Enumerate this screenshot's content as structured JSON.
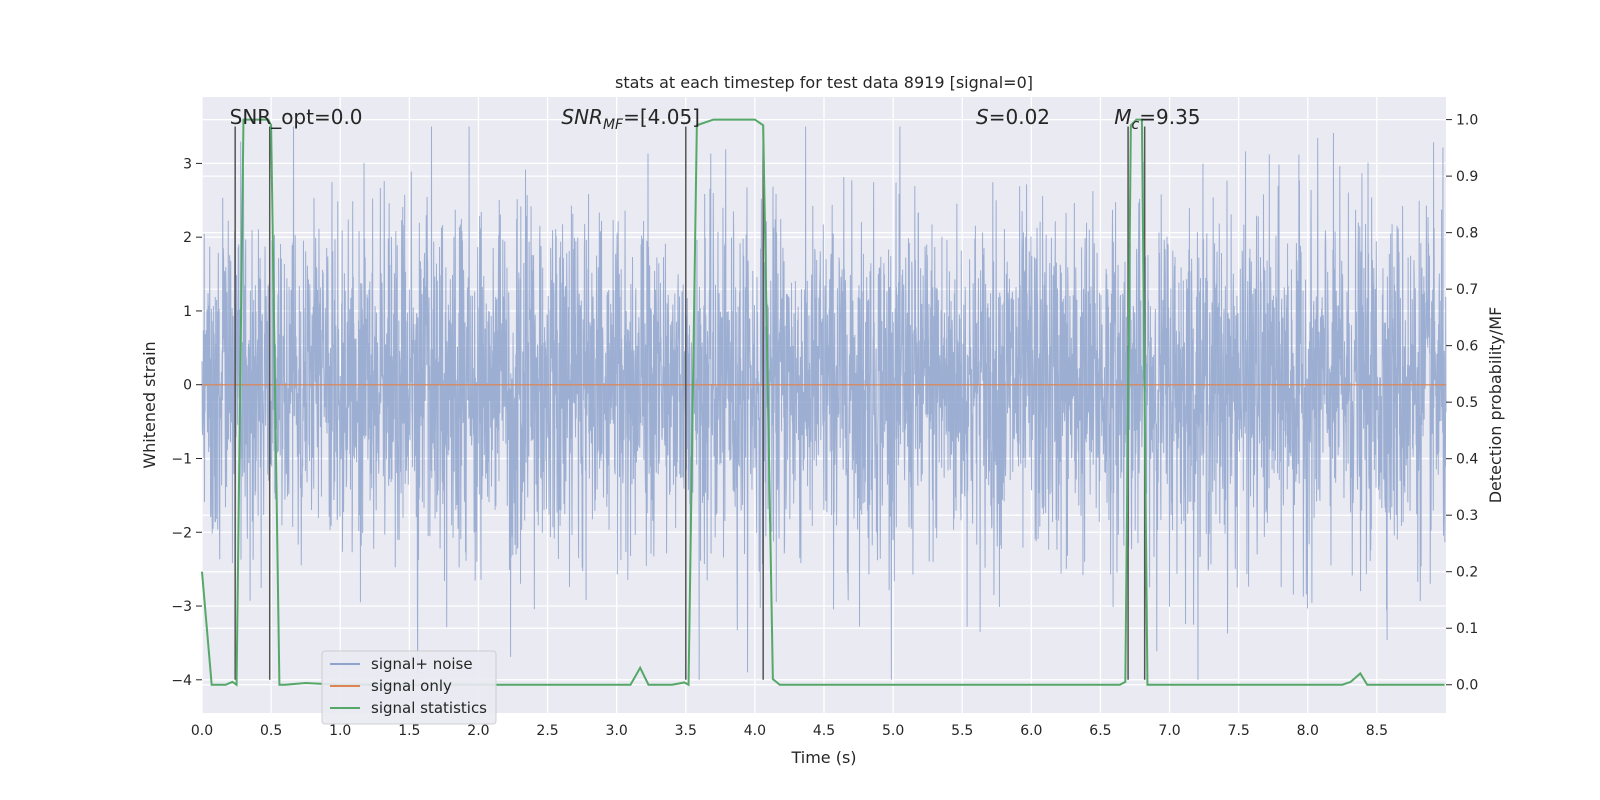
{
  "chart_data": {
    "type": "line",
    "title": "stats at each timestep for test data 8919 [signal=0]",
    "xlabel": "Time (s)",
    "ylabel": "Whitened strain",
    "ylabel_right": "Detection probability/MF",
    "xlim": [
      0.0,
      9.0
    ],
    "ylim": [
      -4.45,
      3.9
    ],
    "ylim_right": [
      -0.05,
      1.04
    ],
    "x_ticks": [
      "0.0",
      "0.5",
      "1.0",
      "1.5",
      "2.0",
      "2.5",
      "3.0",
      "3.5",
      "4.0",
      "4.5",
      "5.0",
      "5.5",
      "6.0",
      "6.5",
      "7.0",
      "7.5",
      "8.0",
      "8.5"
    ],
    "x_tick_values": [
      0.0,
      0.5,
      1.0,
      1.5,
      2.0,
      2.5,
      3.0,
      3.5,
      4.0,
      4.5,
      5.0,
      5.5,
      6.0,
      6.5,
      7.0,
      7.5,
      8.0,
      8.5
    ],
    "y_ticks": [
      "−4",
      "−3",
      "−2",
      "−1",
      "0",
      "1",
      "2",
      "3"
    ],
    "y_tick_values": [
      -4,
      -3,
      -2,
      -1,
      0,
      1,
      2,
      3
    ],
    "y_right_ticks": [
      "0.0",
      "0.1",
      "0.2",
      "0.3",
      "0.4",
      "0.5",
      "0.6",
      "0.7",
      "0.8",
      "0.9",
      "1.0"
    ],
    "y_right_tick_values": [
      0.0,
      0.1,
      0.2,
      0.3,
      0.4,
      0.5,
      0.6,
      0.7,
      0.8,
      0.9,
      1.0
    ],
    "annotations": [
      {
        "text": "SNR_opt=0.0",
        "x": 0.2
      },
      {
        "text": "SNR_MF=[4.05]",
        "x": 2.6
      },
      {
        "text": "S=0.02",
        "x": 5.6
      },
      {
        "text": "M_c=9.35",
        "x": 6.6
      }
    ],
    "vertical_markers": [
      0.24,
      0.49,
      3.5,
      4.06,
      6.7,
      6.82
    ],
    "legend": {
      "placement": "lower-left",
      "entries": [
        "signal+ noise",
        "signal only",
        "signal statistics"
      ]
    },
    "series": [
      {
        "name": "signal+ noise",
        "color": "#8ea3cc",
        "description": "whitened noisy strain, approx range",
        "approx_range": [
          -4.0,
          3.5
        ]
      },
      {
        "name": "signal only",
        "color": "#dd8452",
        "constant_value": 0.0
      },
      {
        "name": "signal statistics",
        "color": "#55a868",
        "axis": "right",
        "x": [
          0.0,
          0.07,
          0.17,
          0.22,
          0.25,
          0.3,
          0.48,
          0.5,
          0.56,
          0.6,
          0.75,
          1.0,
          2.0,
          3.1,
          3.17,
          3.23,
          3.4,
          3.49,
          3.52,
          3.58,
          3.7,
          4.0,
          4.06,
          4.13,
          4.18,
          4.5,
          5.0,
          6.0,
          6.64,
          6.68,
          6.72,
          6.76,
          6.8,
          6.84,
          6.88,
          7.0,
          7.5,
          8.0,
          8.25,
          8.31,
          8.38,
          8.43,
          8.5,
          8.99
        ],
        "y": [
          0.2,
          0.0,
          0.0,
          0.005,
          0.0,
          1.0,
          1.0,
          0.99,
          0.0,
          0.0,
          0.003,
          0.0,
          0.0,
          0.0,
          0.03,
          0.0,
          0.0,
          0.004,
          0.0,
          0.99,
          1.0,
          1.0,
          0.99,
          0.01,
          0.0,
          0.0,
          0.0,
          0.0,
          0.0,
          0.005,
          0.99,
          1.0,
          1.0,
          0.0,
          0.0,
          0.0,
          0.0,
          0.0,
          0.0,
          0.005,
          0.02,
          0.0,
          0.0,
          0.0
        ]
      }
    ]
  }
}
